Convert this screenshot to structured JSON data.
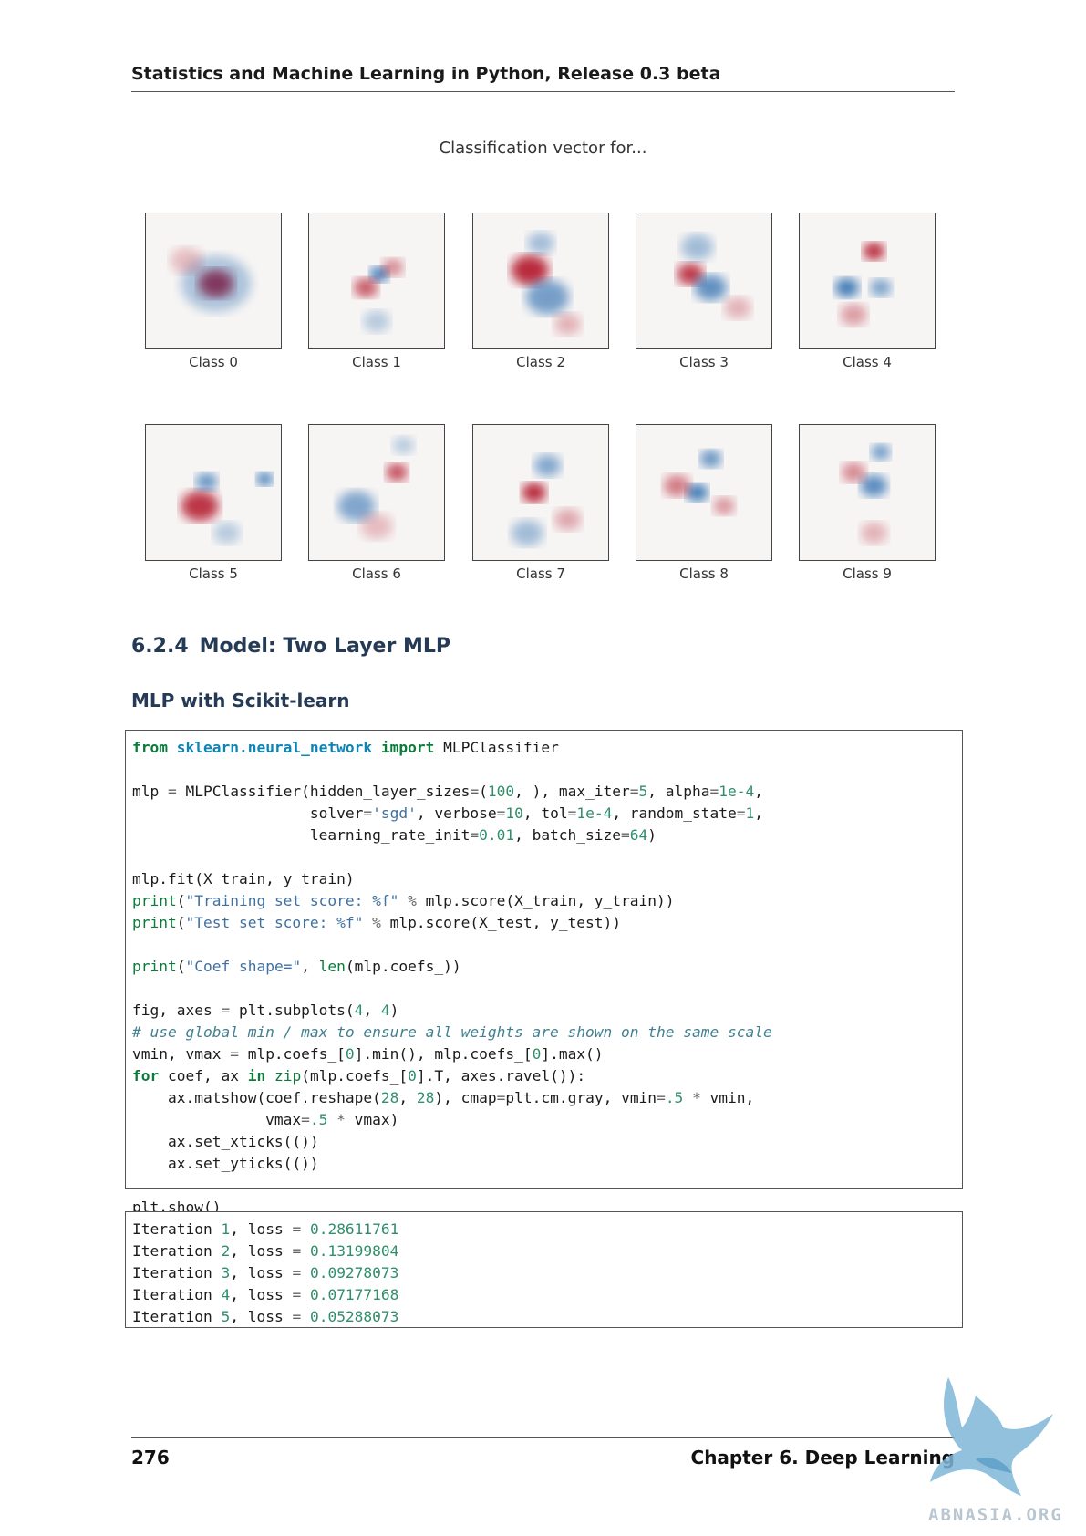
{
  "header": {
    "title": "Statistics and Machine Learning in Python, Release 0.3 beta"
  },
  "figure": {
    "title": "Classification vector for...",
    "classes": [
      {
        "label": "Class 0",
        "blobs": [
          [
            0.52,
            0.52,
            0.13,
            "r",
            0.95
          ],
          [
            0.52,
            0.52,
            0.26,
            "b",
            0.35
          ],
          [
            0.3,
            0.35,
            0.12,
            "r",
            0.25
          ]
        ]
      },
      {
        "label": "Class 1",
        "blobs": [
          [
            0.52,
            0.45,
            0.07,
            "b",
            0.9
          ],
          [
            0.42,
            0.55,
            0.09,
            "r",
            0.7
          ],
          [
            0.62,
            0.4,
            0.08,
            "r",
            0.5
          ],
          [
            0.5,
            0.8,
            0.1,
            "b",
            0.3
          ]
        ]
      },
      {
        "label": "Class 2",
        "blobs": [
          [
            0.42,
            0.42,
            0.14,
            "r",
            0.9
          ],
          [
            0.55,
            0.62,
            0.16,
            "b",
            0.6
          ],
          [
            0.5,
            0.22,
            0.1,
            "b",
            0.4
          ],
          [
            0.7,
            0.82,
            0.1,
            "r",
            0.3
          ]
        ]
      },
      {
        "label": "Class 3",
        "blobs": [
          [
            0.4,
            0.45,
            0.1,
            "r",
            0.85
          ],
          [
            0.55,
            0.55,
            0.12,
            "b",
            0.7
          ],
          [
            0.45,
            0.25,
            0.12,
            "b",
            0.4
          ],
          [
            0.75,
            0.7,
            0.1,
            "r",
            0.3
          ]
        ]
      },
      {
        "label": "Class 4",
        "blobs": [
          [
            0.55,
            0.28,
            0.08,
            "r",
            0.95
          ],
          [
            0.35,
            0.55,
            0.09,
            "b",
            0.85
          ],
          [
            0.6,
            0.55,
            0.08,
            "b",
            0.6
          ],
          [
            0.4,
            0.75,
            0.1,
            "r",
            0.4
          ]
        ]
      },
      {
        "label": "Class 5",
        "blobs": [
          [
            0.4,
            0.6,
            0.14,
            "r",
            0.85
          ],
          [
            0.88,
            0.4,
            0.06,
            "b",
            0.9
          ],
          [
            0.45,
            0.42,
            0.08,
            "b",
            0.7
          ],
          [
            0.6,
            0.8,
            0.1,
            "b",
            0.3
          ]
        ]
      },
      {
        "label": "Class 6",
        "blobs": [
          [
            0.65,
            0.35,
            0.08,
            "r",
            0.8
          ],
          [
            0.35,
            0.6,
            0.14,
            "b",
            0.55
          ],
          [
            0.7,
            0.15,
            0.08,
            "b",
            0.3
          ],
          [
            0.5,
            0.75,
            0.12,
            "r",
            0.25
          ]
        ]
      },
      {
        "label": "Class 7",
        "blobs": [
          [
            0.45,
            0.5,
            0.09,
            "r",
            0.95
          ],
          [
            0.55,
            0.3,
            0.1,
            "b",
            0.55
          ],
          [
            0.4,
            0.8,
            0.12,
            "b",
            0.4
          ],
          [
            0.7,
            0.7,
            0.1,
            "r",
            0.35
          ]
        ]
      },
      {
        "label": "Class 8",
        "blobs": [
          [
            0.45,
            0.5,
            0.08,
            "b",
            0.9
          ],
          [
            0.55,
            0.25,
            0.08,
            "b",
            0.7
          ],
          [
            0.3,
            0.45,
            0.1,
            "r",
            0.55
          ],
          [
            0.65,
            0.6,
            0.08,
            "r",
            0.45
          ]
        ]
      },
      {
        "label": "Class 9",
        "blobs": [
          [
            0.55,
            0.45,
            0.1,
            "b",
            0.75
          ],
          [
            0.4,
            0.35,
            0.09,
            "r",
            0.5
          ],
          [
            0.6,
            0.2,
            0.07,
            "b",
            0.7
          ],
          [
            0.55,
            0.8,
            0.1,
            "r",
            0.3
          ]
        ]
      }
    ]
  },
  "section": {
    "number": "6.2.4",
    "title": "Model: Two Layer MLP"
  },
  "subsection": {
    "title": "MLP with Scikit-learn"
  },
  "code_input": "from sklearn.neural_network import MLPClassifier\n\nmlp = MLPClassifier(hidden_layer_sizes=(100, ), max_iter=5, alpha=1e-4,\n                    solver='sgd', verbose=10, tol=1e-4, random_state=1,\n                    learning_rate_init=0.01, batch_size=64)\n\nmlp.fit(X_train, y_train)\nprint(\"Training set score: %f\" % mlp.score(X_train, y_train))\nprint(\"Test set score: %f\" % mlp.score(X_test, y_test))\n\nprint(\"Coef shape=\", len(mlp.coefs_))\n\nfig, axes = plt.subplots(4, 4)\n# use global min / max to ensure all weights are shown on the same scale\nvmin, vmax = mlp.coefs_[0].min(), mlp.coefs_[0].max()\nfor coef, ax in zip(mlp.coefs_[0].T, axes.ravel()):\n    ax.matshow(coef.reshape(28, 28), cmap=plt.cm.gray, vmin=.5 * vmin,\n               vmax=.5 * vmax)\n    ax.set_xticks(())\n    ax.set_yticks(())\n\nplt.show()",
  "code_output": "Iteration 1, loss = 0.28611761\nIteration 2, loss = 0.13199804\nIteration 3, loss = 0.09278073\nIteration 4, loss = 0.07177168\nIteration 5, loss = 0.05288073",
  "footer": {
    "page_number": "276",
    "chapter": "Chapter 6.  Deep Learning"
  },
  "watermark": {
    "text": "ABNASIA.ORG"
  },
  "colors": {
    "heading": "#253a54",
    "positive": "#b2182b",
    "negative": "#2166ac"
  }
}
